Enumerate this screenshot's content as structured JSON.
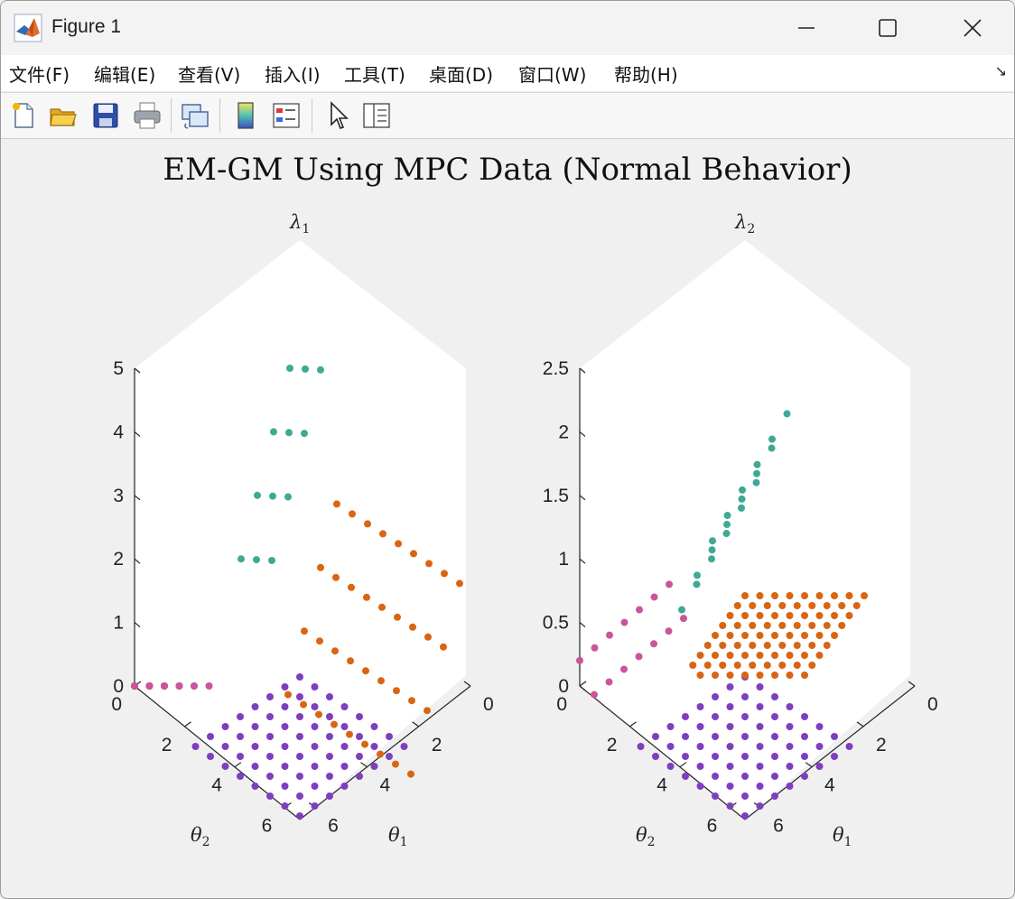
{
  "window": {
    "title": "Figure 1"
  },
  "menu": [
    {
      "label": "文件(F)"
    },
    {
      "label": "编辑(E)"
    },
    {
      "label": "查看(V)"
    },
    {
      "label": "插入(I)"
    },
    {
      "label": "工具(T)"
    },
    {
      "label": "桌面(D)"
    },
    {
      "label": "窗口(W)"
    },
    {
      "label": "帮助(H)"
    }
  ],
  "toolbar": {
    "icons": [
      "new-figure-icon",
      "open-file-icon",
      "save-icon",
      "print-icon",
      "link-plot-icon",
      "insert-colorbar-icon",
      "insert-legend-icon",
      "edit-plot-arrow-icon",
      "property-inspector-icon"
    ]
  },
  "colors": {
    "pink": "#c9559c",
    "purple": "#7e3fbe",
    "teal": "#3fa995",
    "orange": "#d96512"
  },
  "chart_data": {
    "type": "scatter",
    "title": "EM-GM Using MPC Data (Normal Behavior)",
    "subplots": [
      {
        "zlabel": "λ",
        "zlabel_sub": "1",
        "xlabel": "θ",
        "xlabel_sub": "1",
        "ylabel": "θ",
        "ylabel_sub": "2",
        "zlim": [
          0,
          5
        ],
        "z_ticks": [
          "0",
          "1",
          "2",
          "3",
          "4",
          "5"
        ],
        "theta1_ticks": [
          "0",
          "2",
          "4",
          "6"
        ],
        "theta2_ticks": [
          "0",
          "2",
          "4",
          "6"
        ],
        "series": [
          {
            "color": "pink",
            "values": [
              0,
              0,
              0,
              0,
              0,
              0,
              0,
              0,
              0,
              0,
              0,
              0,
              0,
              0,
              0,
              0,
              0,
              0
            ]
          },
          {
            "color": "purple",
            "values": [
              0,
              0,
              0,
              0,
              0,
              0,
              0,
              0,
              0,
              0
            ]
          },
          {
            "color": "teal",
            "values": [
              2,
              2.3,
              2.6,
              3,
              3.3,
              3.6,
              4,
              4.3,
              4.6,
              5,
              5.3,
              5.6
            ]
          },
          {
            "color": "orange",
            "values": [
              1,
              1.3,
              1.6,
              2,
              2.3,
              2.6,
              3,
              3.3,
              3.6,
              4,
              4.3,
              4.6
            ]
          }
        ]
      },
      {
        "zlabel": "λ",
        "zlabel_sub": "2",
        "xlabel": "θ",
        "xlabel_sub": "1",
        "ylabel": "θ",
        "ylabel_sub": "2",
        "zlim": [
          0,
          2.5
        ],
        "z_ticks": [
          "0",
          "0.5",
          "1",
          "1.5",
          "2",
          "2.5"
        ],
        "theta1_ticks": [
          "0",
          "2",
          "4",
          "6"
        ],
        "theta2_ticks": [
          "0",
          "2",
          "4",
          "6"
        ],
        "series": [
          {
            "color": "pink",
            "values": [
              0.2,
              0.3,
              0.4,
              0.5,
              0.6,
              0.7,
              0.8,
              0.9,
              1.0,
              1.1,
              1.2,
              1.3
            ]
          },
          {
            "color": "purple",
            "values": [
              0,
              0,
              0,
              0,
              0,
              0,
              0,
              0,
              0,
              0
            ]
          },
          {
            "color": "teal",
            "values": [
              0.6,
              0.8,
              1.0,
              1.2,
              1.4,
              1.6,
              1.8,
              2.0,
              2.2,
              2.4
            ]
          },
          {
            "color": "orange",
            "values": [
              0,
              0,
              0,
              0,
              0,
              0,
              0,
              0,
              0,
              0
            ]
          }
        ]
      }
    ]
  }
}
